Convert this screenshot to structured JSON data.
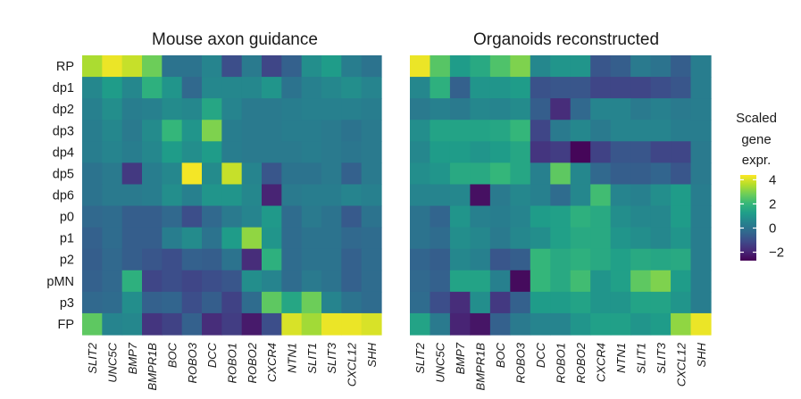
{
  "chart_data": [
    {
      "type": "heatmap",
      "title": "Mouse axon guidance",
      "rows": [
        "RP",
        "dp1",
        "dp2",
        "dp3",
        "dp4",
        "dp5",
        "dp6",
        "p0",
        "p1",
        "p2",
        "pMN",
        "p3",
        "FP"
      ],
      "columns": [
        "SLIT2",
        "UNC5C",
        "BMP7",
        "BMPR1B",
        "BOC",
        "ROBO3",
        "DCC",
        "ROBO1",
        "ROBO2",
        "CXCR4",
        "NTN1",
        "SLIT1",
        "SLIT3",
        "CXCL12",
        "SHH"
      ],
      "values": [
        [
          3.5,
          4.2,
          3.8,
          2.8,
          0.0,
          0.0,
          0.5,
          -1.0,
          0.2,
          -1.2,
          -0.5,
          0.8,
          1.2,
          0.3,
          0.0
        ],
        [
          0.6,
          1.2,
          0.6,
          1.8,
          1.0,
          -0.3,
          0.6,
          0.6,
          0.6,
          1.0,
          0.0,
          0.4,
          0.6,
          0.8,
          0.5
        ],
        [
          0.4,
          0.8,
          0.3,
          0.4,
          0.7,
          0.6,
          1.5,
          0.5,
          0.2,
          0.2,
          0.3,
          0.4,
          0.4,
          0.4,
          0.3
        ],
        [
          0.3,
          0.6,
          0.2,
          0.7,
          2.0,
          1.0,
          3.0,
          0.3,
          0.2,
          0.2,
          0.3,
          0.3,
          0.2,
          0.0,
          0.2
        ],
        [
          0.3,
          0.5,
          0.3,
          0.6,
          1.2,
          0.8,
          1.2,
          0.3,
          0.2,
          0.2,
          0.2,
          0.3,
          0.2,
          0.1,
          0.2
        ],
        [
          0.0,
          0.2,
          -1.5,
          0.3,
          0.6,
          4.3,
          0.7,
          3.8,
          0.5,
          -0.8,
          0.0,
          0.0,
          0.2,
          -0.5,
          0.2
        ],
        [
          0.0,
          0.2,
          0.2,
          0.3,
          0.8,
          0.4,
          1.0,
          1.0,
          0.6,
          -2.0,
          0.2,
          0.3,
          0.3,
          0.5,
          0.4
        ],
        [
          -0.3,
          -0.2,
          -0.6,
          -0.6,
          -0.3,
          -1.0,
          -0.3,
          0.2,
          0.5,
          1.1,
          -0.2,
          0.2,
          0.0,
          -0.7,
          0.0
        ],
        [
          -0.5,
          -0.2,
          -0.6,
          -0.6,
          0.3,
          0.7,
          0.0,
          1.2,
          3.2,
          1.0,
          -0.2,
          0.0,
          0.0,
          -0.3,
          -0.2
        ],
        [
          -0.6,
          -0.3,
          -0.6,
          -0.8,
          -1.0,
          -0.5,
          -0.6,
          0.0,
          -1.8,
          1.8,
          -0.2,
          0.0,
          0.0,
          -0.5,
          -0.2
        ],
        [
          -0.5,
          -0.3,
          1.8,
          -1.2,
          -1.0,
          -1.2,
          -1.0,
          -0.8,
          0.8,
          0.5,
          -0.2,
          0.2,
          0.0,
          -0.5,
          -0.2
        ],
        [
          -0.3,
          -0.2,
          0.8,
          -0.5,
          -0.4,
          -1.0,
          -0.6,
          -1.3,
          -0.2,
          2.6,
          1.5,
          2.8,
          0.5,
          0.0,
          -0.2
        ],
        [
          2.6,
          0.5,
          0.6,
          -1.6,
          -1.3,
          -0.5,
          -1.8,
          -1.4,
          -2.2,
          -1.0,
          4.0,
          3.4,
          4.2,
          4.2,
          4.0
        ]
      ]
    },
    {
      "type": "heatmap",
      "title": "Organoids reconstructed",
      "rows": [
        "RP",
        "dp1",
        "dp2",
        "dp3",
        "dp4",
        "dp5",
        "dp6",
        "p0",
        "p1",
        "p2",
        "pMN",
        "p3",
        "FP"
      ],
      "columns": [
        "SLIT2",
        "UNC5C",
        "BMP7",
        "BMPR1B",
        "BOC",
        "ROBO3",
        "DCC",
        "ROBO1",
        "ROBO2",
        "CXCR4",
        "NTN1",
        "SLIT1",
        "SLIT3",
        "CXCL12",
        "SHH"
      ],
      "values": [
        [
          4.2,
          2.5,
          1.2,
          1.6,
          2.4,
          3.0,
          0.6,
          1.0,
          1.0,
          -0.8,
          -0.6,
          0.2,
          0.0,
          -0.6,
          0.3
        ],
        [
          0.6,
          1.8,
          -0.5,
          1.0,
          1.0,
          1.2,
          -0.9,
          -0.8,
          -0.8,
          -1.2,
          -1.2,
          -1.2,
          -1.0,
          -0.8,
          0.3
        ],
        [
          0.2,
          0.4,
          0.2,
          0.6,
          0.5,
          0.7,
          -0.6,
          -1.8,
          -0.3,
          0.5,
          0.5,
          0.2,
          0.4,
          0.2,
          0.3
        ],
        [
          0.8,
          1.4,
          1.4,
          1.4,
          1.5,
          2.0,
          -1.2,
          0.2,
          0.6,
          0.2,
          0.5,
          0.5,
          0.5,
          0.3,
          0.3
        ],
        [
          0.6,
          1.2,
          1.2,
          1.0,
          1.2,
          1.5,
          -1.6,
          -1.4,
          -2.6,
          -1.3,
          -0.8,
          -0.8,
          -1.2,
          -1.2,
          0.2
        ],
        [
          0.8,
          1.0,
          1.6,
          1.6,
          2.0,
          1.5,
          0.4,
          2.6,
          0.6,
          -0.3,
          -0.6,
          -0.6,
          -0.4,
          -0.8,
          0.2
        ],
        [
          0.5,
          0.5,
          0.6,
          -2.4,
          0.2,
          0.6,
          0.4,
          -0.2,
          0.6,
          2.2,
          0.5,
          0.4,
          0.8,
          1.2,
          0.3
        ],
        [
          0.0,
          -0.4,
          1.0,
          0.4,
          0.3,
          0.5,
          1.2,
          1.3,
          1.8,
          1.6,
          0.8,
          0.6,
          0.6,
          1.2,
          0.3
        ],
        [
          0.0,
          -0.2,
          0.8,
          0.6,
          0.2,
          0.6,
          0.8,
          1.3,
          1.6,
          1.6,
          1.0,
          0.8,
          0.6,
          1.0,
          0.3
        ],
        [
          -0.4,
          -0.6,
          0.6,
          0.4,
          -0.8,
          -0.6,
          2.0,
          1.6,
          1.8,
          1.6,
          1.3,
          1.6,
          1.5,
          1.6,
          0.3
        ],
        [
          -0.3,
          -0.5,
          1.4,
          1.4,
          0.4,
          -2.5,
          2.0,
          1.6,
          2.2,
          1.0,
          1.3,
          2.6,
          3.0,
          1.2,
          0.3
        ],
        [
          -0.2,
          -1.0,
          -1.8,
          0.8,
          -1.5,
          -0.5,
          1.2,
          1.2,
          1.4,
          1.0,
          1.0,
          1.4,
          1.4,
          1.0,
          0.3
        ],
        [
          1.4,
          0.2,
          -2.0,
          -2.3,
          -0.5,
          0.2,
          0.5,
          0.5,
          1.0,
          1.3,
          1.3,
          1.0,
          1.2,
          3.2,
          4.2
        ]
      ]
    }
  ],
  "legend": {
    "title_lines": [
      "Scaled",
      "gene",
      "expr."
    ],
    "ticks": [
      "4",
      "2",
      "0",
      "−2"
    ],
    "tick_values": [
      4,
      2,
      0,
      -2
    ],
    "range": [
      -2.7,
      4.4
    ],
    "palette": "viridis"
  },
  "colors": {
    "viridis": [
      "#440154",
      "#482878",
      "#3e4989",
      "#31688e",
      "#26828e",
      "#1f9e89",
      "#35b779",
      "#6ece58",
      "#b5de2b",
      "#fde725"
    ]
  }
}
